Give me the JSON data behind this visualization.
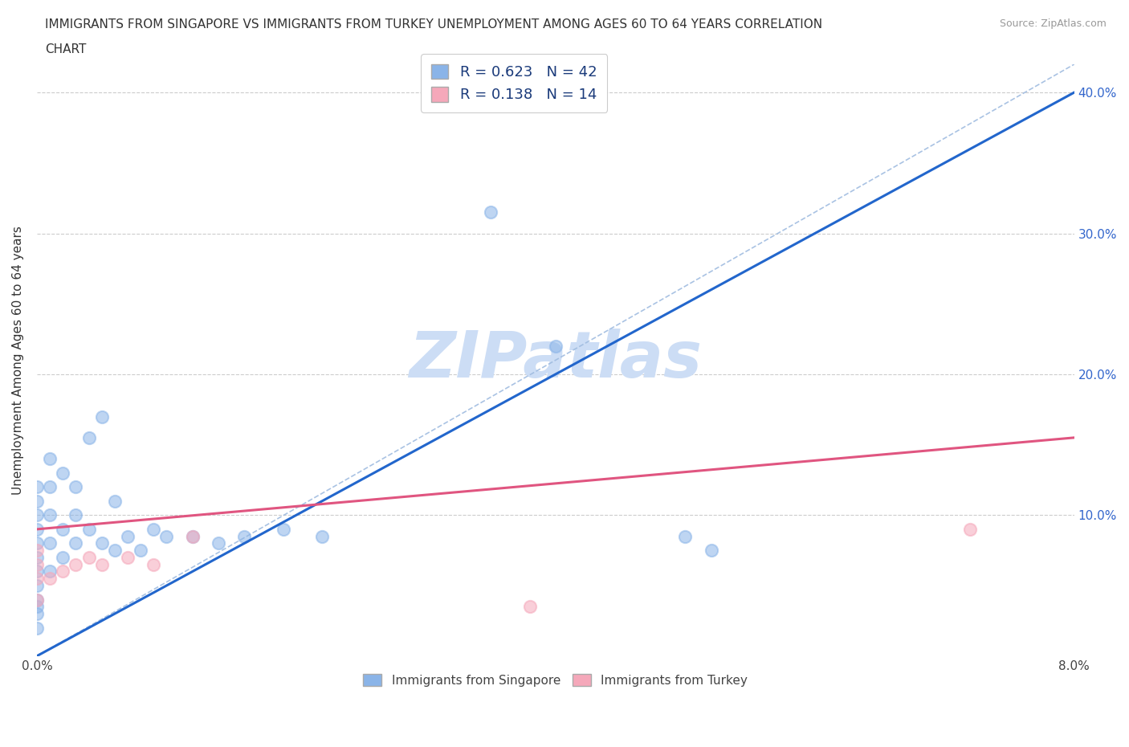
{
  "title_line1": "IMMIGRANTS FROM SINGAPORE VS IMMIGRANTS FROM TURKEY UNEMPLOYMENT AMONG AGES 60 TO 64 YEARS CORRELATION",
  "title_line2": "CHART",
  "source_text": "Source: ZipAtlas.com",
  "ylabel": "Unemployment Among Ages 60 to 64 years",
  "xlim": [
    0.0,
    0.08
  ],
  "ylim": [
    0.0,
    0.42
  ],
  "xtick_positions": [
    0.0,
    0.01,
    0.02,
    0.03,
    0.04,
    0.05,
    0.06,
    0.07,
    0.08
  ],
  "xticklabels": [
    "0.0%",
    "",
    "",
    "",
    "",
    "",
    "",
    "",
    "8.0%"
  ],
  "ytick_positions": [
    0.0,
    0.1,
    0.2,
    0.3,
    0.4
  ],
  "yticklabels_left": [
    "",
    "",
    "",
    "",
    ""
  ],
  "yticklabels_right": [
    "",
    "10.0%",
    "20.0%",
    "30.0%",
    "40.0%"
  ],
  "singapore_color": "#8ab4e8",
  "turkey_color": "#f5a8ba",
  "singapore_trend_color": "#2266cc",
  "turkey_trend_color": "#e05580",
  "diagonal_color": "#a0bce0",
  "watermark_color": "#ccddf5",
  "sg_x": [
    0.0,
    0.0,
    0.0,
    0.0,
    0.0,
    0.0,
    0.0,
    0.0,
    0.0,
    0.0,
    0.0,
    0.0,
    0.001,
    0.001,
    0.001,
    0.001,
    0.001,
    0.002,
    0.002,
    0.002,
    0.003,
    0.003,
    0.003,
    0.004,
    0.004,
    0.005,
    0.005,
    0.006,
    0.006,
    0.007,
    0.008,
    0.009,
    0.01,
    0.012,
    0.014,
    0.016,
    0.019,
    0.022,
    0.035,
    0.04,
    0.05,
    0.052
  ],
  "sg_y": [
    0.02,
    0.03,
    0.035,
    0.04,
    0.05,
    0.06,
    0.07,
    0.08,
    0.09,
    0.1,
    0.11,
    0.12,
    0.06,
    0.08,
    0.1,
    0.12,
    0.14,
    0.07,
    0.09,
    0.13,
    0.08,
    0.1,
    0.12,
    0.09,
    0.155,
    0.08,
    0.17,
    0.075,
    0.11,
    0.085,
    0.075,
    0.09,
    0.085,
    0.085,
    0.08,
    0.085,
    0.09,
    0.085,
    0.315,
    0.22,
    0.085,
    0.075
  ],
  "tr_x": [
    0.0,
    0.0,
    0.0,
    0.0,
    0.001,
    0.002,
    0.003,
    0.004,
    0.005,
    0.007,
    0.009,
    0.012,
    0.038,
    0.072
  ],
  "tr_y": [
    0.04,
    0.055,
    0.065,
    0.075,
    0.055,
    0.06,
    0.065,
    0.07,
    0.065,
    0.07,
    0.065,
    0.085,
    0.035,
    0.09
  ],
  "sg_trend_x0": 0.0,
  "sg_trend_y0": 0.0,
  "sg_trend_x1": 0.08,
  "sg_trend_y1": 0.4,
  "tr_trend_x0": 0.0,
  "tr_trend_y0": 0.09,
  "tr_trend_x1": 0.08,
  "tr_trend_y1": 0.155,
  "legend_label_sg": "R = 0.623   N = 42",
  "legend_label_tr": "R = 0.138   N = 14",
  "legend_label_sg_bottom": "Immigrants from Singapore",
  "legend_label_tr_bottom": "Immigrants from Turkey"
}
